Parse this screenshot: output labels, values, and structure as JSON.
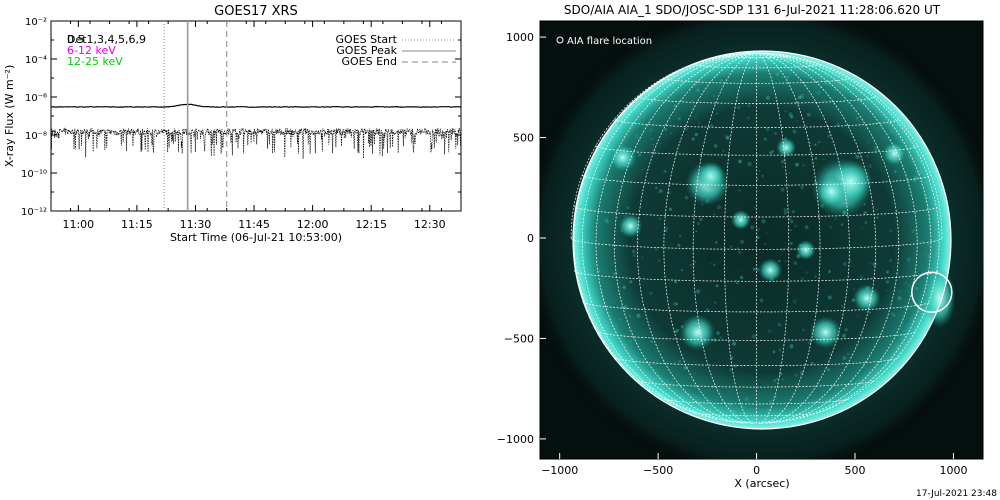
{
  "goes": {
    "title": "GOES17 XRS",
    "ylabel": "X-ray Flux (W m⁻²)",
    "xlabel": "Start Time (06-Jul-21 10:53:00)",
    "bands": [
      {
        "label": "Det1,3,4,5,6,9",
        "color": "#000000"
      },
      {
        "label": "6-12 keV",
        "color": "#e000e0"
      },
      {
        "label": "12-25 keV",
        "color": "#00cc00"
      }
    ],
    "band_overlap_text": "0.5",
    "legend": [
      {
        "label": "GOES Start",
        "style": "dotted"
      },
      {
        "label": "GOES Peak",
        "style": "solid"
      },
      {
        "label": "GOES End",
        "style": "dashed"
      }
    ]
  },
  "aia": {
    "title": "SDO/AIA AIA_1 SDO/JOSC-SDP 131  6-Jul-2021 11:28:06.620 UT",
    "xlabel": "X (arcsec)",
    "legend_label": "AIA flare location",
    "disk_color": "#22c4b4"
  },
  "footer_timestamp": "17-Jul-2021 23:48",
  "chart_data": [
    {
      "type": "line",
      "title": "GOES17 XRS",
      "xlabel": "Start Time (06-Jul-21 10:53:00)",
      "ylabel": "X-ray Flux (W m⁻²)",
      "yscale": "log",
      "ylim": [
        1e-12,
        0.01
      ],
      "y_tick_labels": [
        "10⁻¹²",
        "10⁻¹⁰",
        "10⁻⁸",
        "10⁻⁶",
        "10⁻⁴",
        "10⁻²"
      ],
      "xlim": [
        "10:53",
        "12:38"
      ],
      "x_tick_labels": [
        "11:00",
        "11:15",
        "11:30",
        "11:45",
        "12:00",
        "12:15",
        "12:30"
      ],
      "x_tick_minutes": [
        660,
        675,
        690,
        705,
        720,
        735,
        750
      ],
      "series": [
        {
          "name": "Det1,3,4,5,6,9",
          "color": "#000000",
          "style": "solid",
          "approx_level": 3e-07
        },
        {
          "name": "Det1,3,4,5,6,9",
          "color": "#000000",
          "style": "noisy",
          "approx_level": 1.5e-08
        }
      ],
      "markers": [
        {
          "name": "GOES Start",
          "time": "11:22",
          "style": "dotted"
        },
        {
          "name": "GOES Peak",
          "time": "11:28",
          "style": "solid"
        },
        {
          "name": "GOES End",
          "time": "11:38",
          "style": "dashed"
        }
      ],
      "legend_position": "top-right",
      "grid": false
    },
    {
      "type": "scatter",
      "title": "SDO/AIA AIA_1 SDO/JOSC-SDP 131  6-Jul-2021 11:28:06.620 UT",
      "xlabel": "X (arcsec)",
      "ylabel": "",
      "xlim": [
        -1100,
        1150
      ],
      "ylim": [
        -1100,
        1080
      ],
      "x_ticks": [
        -1000,
        -500,
        0,
        500,
        1000
      ],
      "y_ticks": [
        -1000,
        -500,
        0,
        500,
        1000
      ],
      "solar_radius_arcsec": 942,
      "grid": true,
      "points": [
        {
          "name": "AIA flare location",
          "x": 890,
          "y": -270
        }
      ],
      "legend_position": "top-left"
    }
  ]
}
